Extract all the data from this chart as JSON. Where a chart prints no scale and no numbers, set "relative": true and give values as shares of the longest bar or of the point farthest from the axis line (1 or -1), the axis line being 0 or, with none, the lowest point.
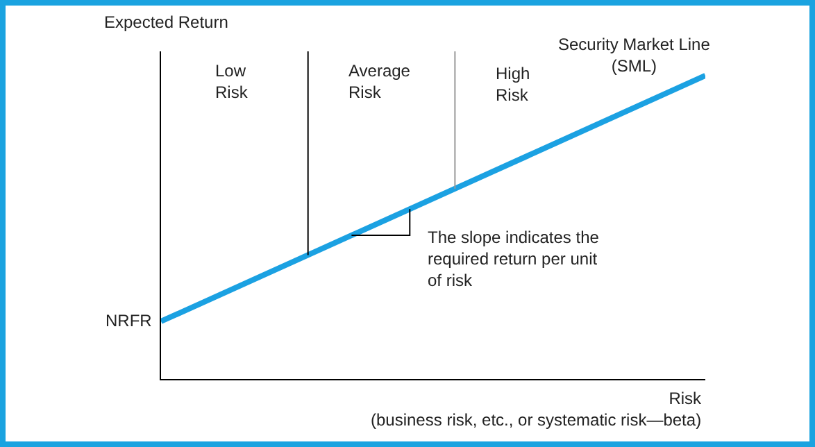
{
  "chart_data": {
    "type": "line",
    "relative": true,
    "xlabel": "Risk\n(business risk, etc., or systematic risk—beta)",
    "ylabel": "Expected Return",
    "categories": [
      null,
      null
    ],
    "series": [
      {
        "name": "Security Market Line\n(SML)",
        "color": "#1ba1e2",
        "values": [
          0.19,
          1
        ]
      }
    ],
    "annotations": [
      "Low\nRisk",
      "Average\nRisk",
      "High\nRisk",
      "The slope indicates the\nrequired return per unit\nof risk",
      "NRFR"
    ],
    "grid": false,
    "legend": false,
    "marker": "none",
    "line_style": "solid"
  }
}
